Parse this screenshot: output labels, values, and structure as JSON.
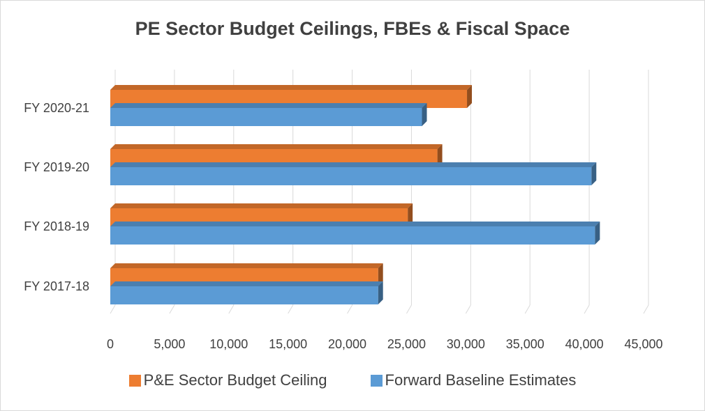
{
  "chart_data": {
    "type": "bar",
    "orientation": "horizontal",
    "style": "3d",
    "title": "PE Sector Budget Ceilings, FBEs & Fiscal Space",
    "categories": [
      "FY 2017-18",
      "FY 2018-19",
      "FY 2019-20",
      "FY 2020-21"
    ],
    "series": [
      {
        "name": "P&E Sector Budget Ceiling",
        "color": "#ED7D31",
        "values": [
          22600,
          25100,
          27600,
          30100
        ]
      },
      {
        "name": "Forward Baseline Estimates",
        "color": "#5B9BD5",
        "values": [
          22600,
          40900,
          40600,
          26300
        ]
      }
    ],
    "x_ticks": [
      "0",
      "5,000",
      "10,000",
      "15,000",
      "20,000",
      "25,000",
      "30,000",
      "35,000",
      "40,000",
      "45,000"
    ],
    "xlim": [
      0,
      45000
    ],
    "grid": true,
    "legend_position": "bottom"
  }
}
